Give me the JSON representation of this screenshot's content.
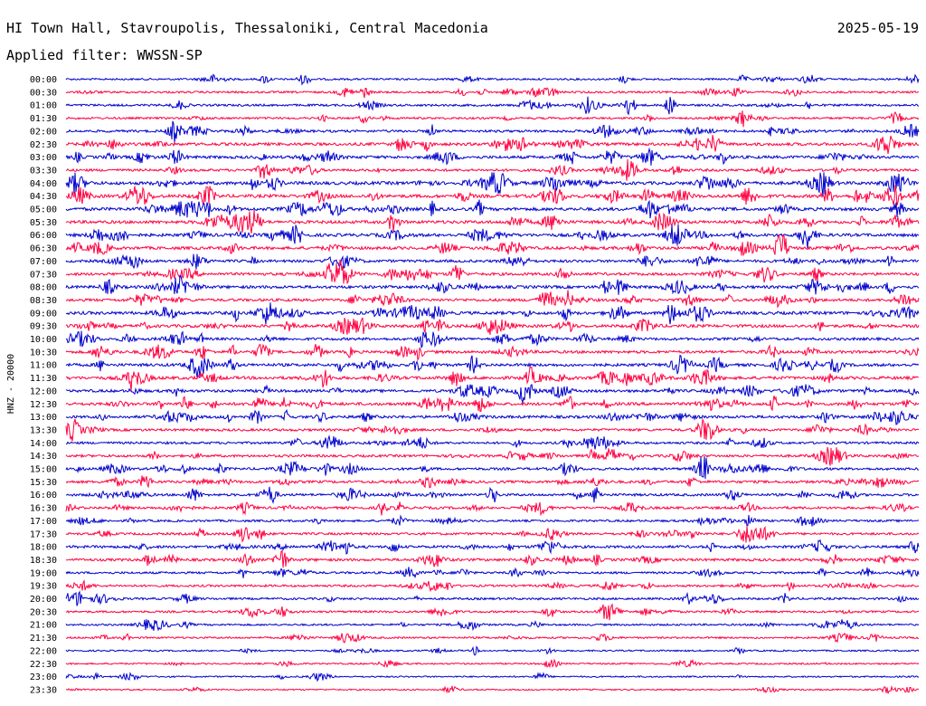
{
  "header": {
    "station": "HI Town Hall, Stavroupolis, Thessaloniki, Central Macedonia",
    "date": "2025-05-19",
    "filter": "Applied filter: WWSSN-SP"
  },
  "chart_data": {
    "type": "line",
    "ylabel": "HNZ - 20000",
    "series_colors": [
      "#0000cc",
      "#ff0040"
    ],
    "trace_labels": [
      "00:00",
      "00:30",
      "01:00",
      "01:30",
      "02:00",
      "02:30",
      "03:00",
      "03:30",
      "04:00",
      "04:30",
      "05:00",
      "05:30",
      "06:00",
      "06:30",
      "07:00",
      "07:30",
      "08:00",
      "08:30",
      "09:00",
      "09:30",
      "10:00",
      "10:30",
      "11:00",
      "11:30",
      "12:00",
      "12:30",
      "13:00",
      "13:30",
      "14:00",
      "14:30",
      "15:00",
      "15:30",
      "16:00",
      "16:30",
      "17:00",
      "17:30",
      "18:00",
      "18:30",
      "19:00",
      "19:30",
      "20:00",
      "20:30",
      "21:00",
      "21:30",
      "22:00",
      "22:30",
      "23:00",
      "23:30"
    ],
    "trace_activity": [
      0.25,
      0.3,
      0.35,
      0.3,
      0.45,
      0.6,
      0.6,
      0.45,
      0.7,
      0.7,
      0.7,
      0.65,
      0.65,
      0.6,
      0.5,
      0.55,
      0.6,
      0.55,
      0.65,
      0.6,
      0.5,
      0.55,
      0.6,
      0.65,
      0.55,
      0.6,
      0.55,
      0.45,
      0.4,
      0.45,
      0.45,
      0.5,
      0.45,
      0.45,
      0.35,
      0.4,
      0.5,
      0.5,
      0.35,
      0.35,
      0.35,
      0.3,
      0.25,
      0.25,
      0.15,
      0.15,
      0.12,
      0.1
    ]
  }
}
